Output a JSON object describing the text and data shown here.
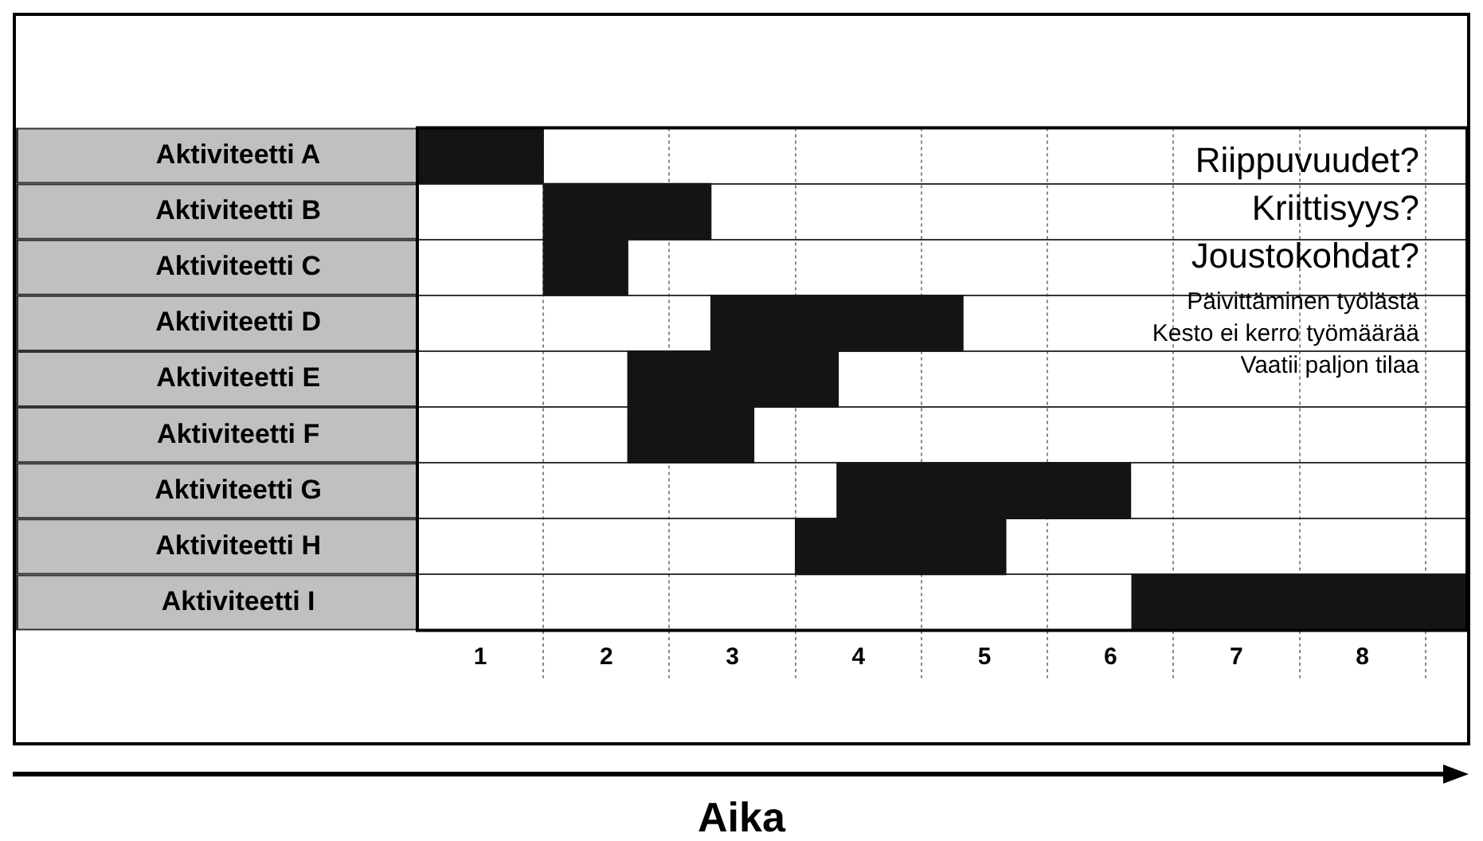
{
  "chart_data": {
    "type": "bar",
    "orientation": "horizontal",
    "xlabel": "Aika",
    "categories": [
      "Aktiviteetti A",
      "Aktiviteetti B",
      "Aktiviteetti C",
      "Aktiviteetti D",
      "Aktiviteetti E",
      "Aktiviteetti F",
      "Aktiviteetti G",
      "Aktiviteetti H",
      "Aktiviteetti I"
    ],
    "base": [
      0,
      1,
      1,
      2.33,
      1.67,
      1.67,
      3.33,
      3,
      5.67
    ],
    "values": [
      1,
      1.33,
      0.67,
      2,
      1.67,
      1,
      2.33,
      1.67,
      2.66
    ],
    "color": "#141414",
    "xlim": [
      0,
      8.33
    ],
    "xticks": [
      {
        "value": 0.5,
        "label": "1"
      },
      {
        "value": 1,
        "label": null
      },
      {
        "value": 1.5,
        "label": "2"
      },
      {
        "value": 2,
        "label": null
      },
      {
        "value": 2.5,
        "label": "3"
      },
      {
        "value": 3,
        "label": null
      },
      {
        "value": 3.5,
        "label": "4"
      },
      {
        "value": 4,
        "label": null
      },
      {
        "value": 4.5,
        "label": "5"
      },
      {
        "value": 5,
        "label": null
      },
      {
        "value": 5.5,
        "label": "6"
      },
      {
        "value": 6,
        "label": null
      },
      {
        "value": 6.5,
        "label": "7"
      },
      {
        "value": 7,
        "label": null
      },
      {
        "value": 7.5,
        "label": "8"
      },
      {
        "value": 8,
        "label": null
      }
    ],
    "grid": true,
    "legend": false,
    "annotations": [
      "Riippuvuudet?",
      "Kriittisyys?",
      "Joustokohdat?",
      "Päivittäminen työlästä",
      "Kesto ei kerro työmäärää",
      "Vaatii paljon tilaa"
    ]
  }
}
